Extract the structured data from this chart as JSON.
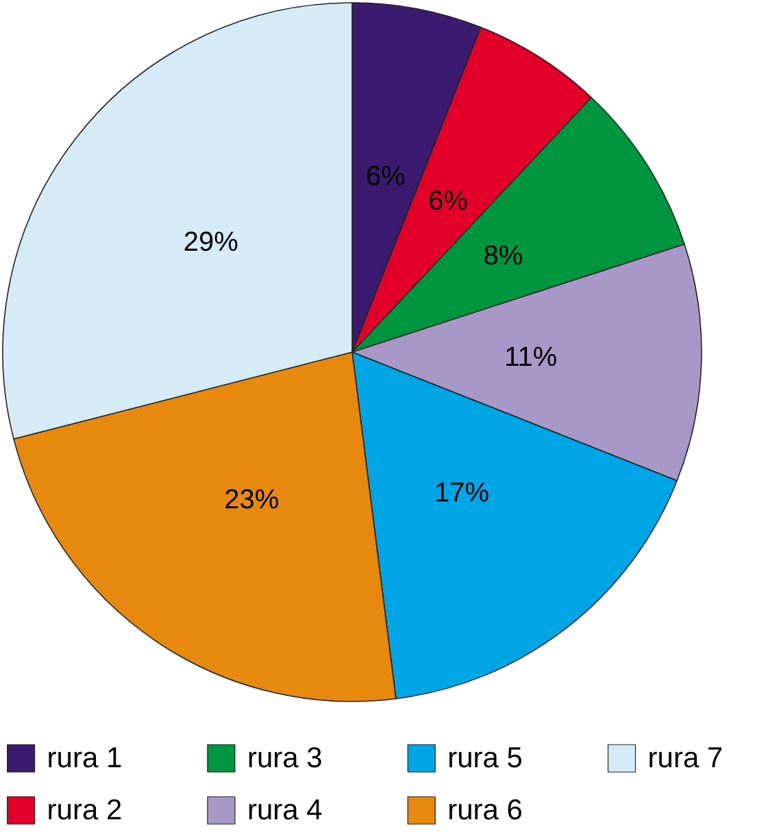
{
  "chart_data": {
    "type": "pie",
    "categories": [
      "rura 1",
      "rura 2",
      "rura 3",
      "rura 4",
      "rura 5",
      "rura 6",
      "rura 7"
    ],
    "values": [
      6,
      6,
      8,
      11,
      17,
      23,
      29
    ],
    "colors": [
      "#3b1a70",
      "#e2002a",
      "#00963f",
      "#a898c8",
      "#00a5e5",
      "#e8890f",
      "#d5ebf8"
    ],
    "value_labels": [
      "6%",
      "6%",
      "8%",
      "11%",
      "17%",
      "23%",
      "29%"
    ],
    "legend": "bottom"
  }
}
